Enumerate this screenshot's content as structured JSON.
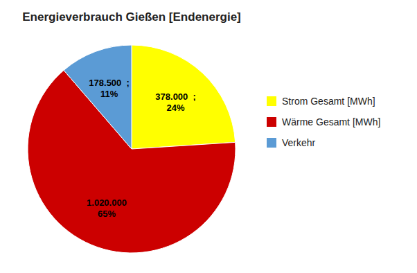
{
  "chart_data": {
    "type": "pie",
    "title": "Energieverbrauch Gießen [Endenergie]",
    "categories": [
      "Strom Gesamt [MWh]",
      "Wärme Gesamt [MWh]",
      "Verkehr"
    ],
    "values": [
      378000,
      1020000,
      178500
    ],
    "value_labels": [
      "378.000  ;\n24%",
      "1.020.000\n65%",
      "178.500  ;\n11%"
    ],
    "colors": [
      "#FFFF00",
      "#CC0000",
      "#5B9BD5"
    ],
    "data_labels": true,
    "legend": "right"
  }
}
